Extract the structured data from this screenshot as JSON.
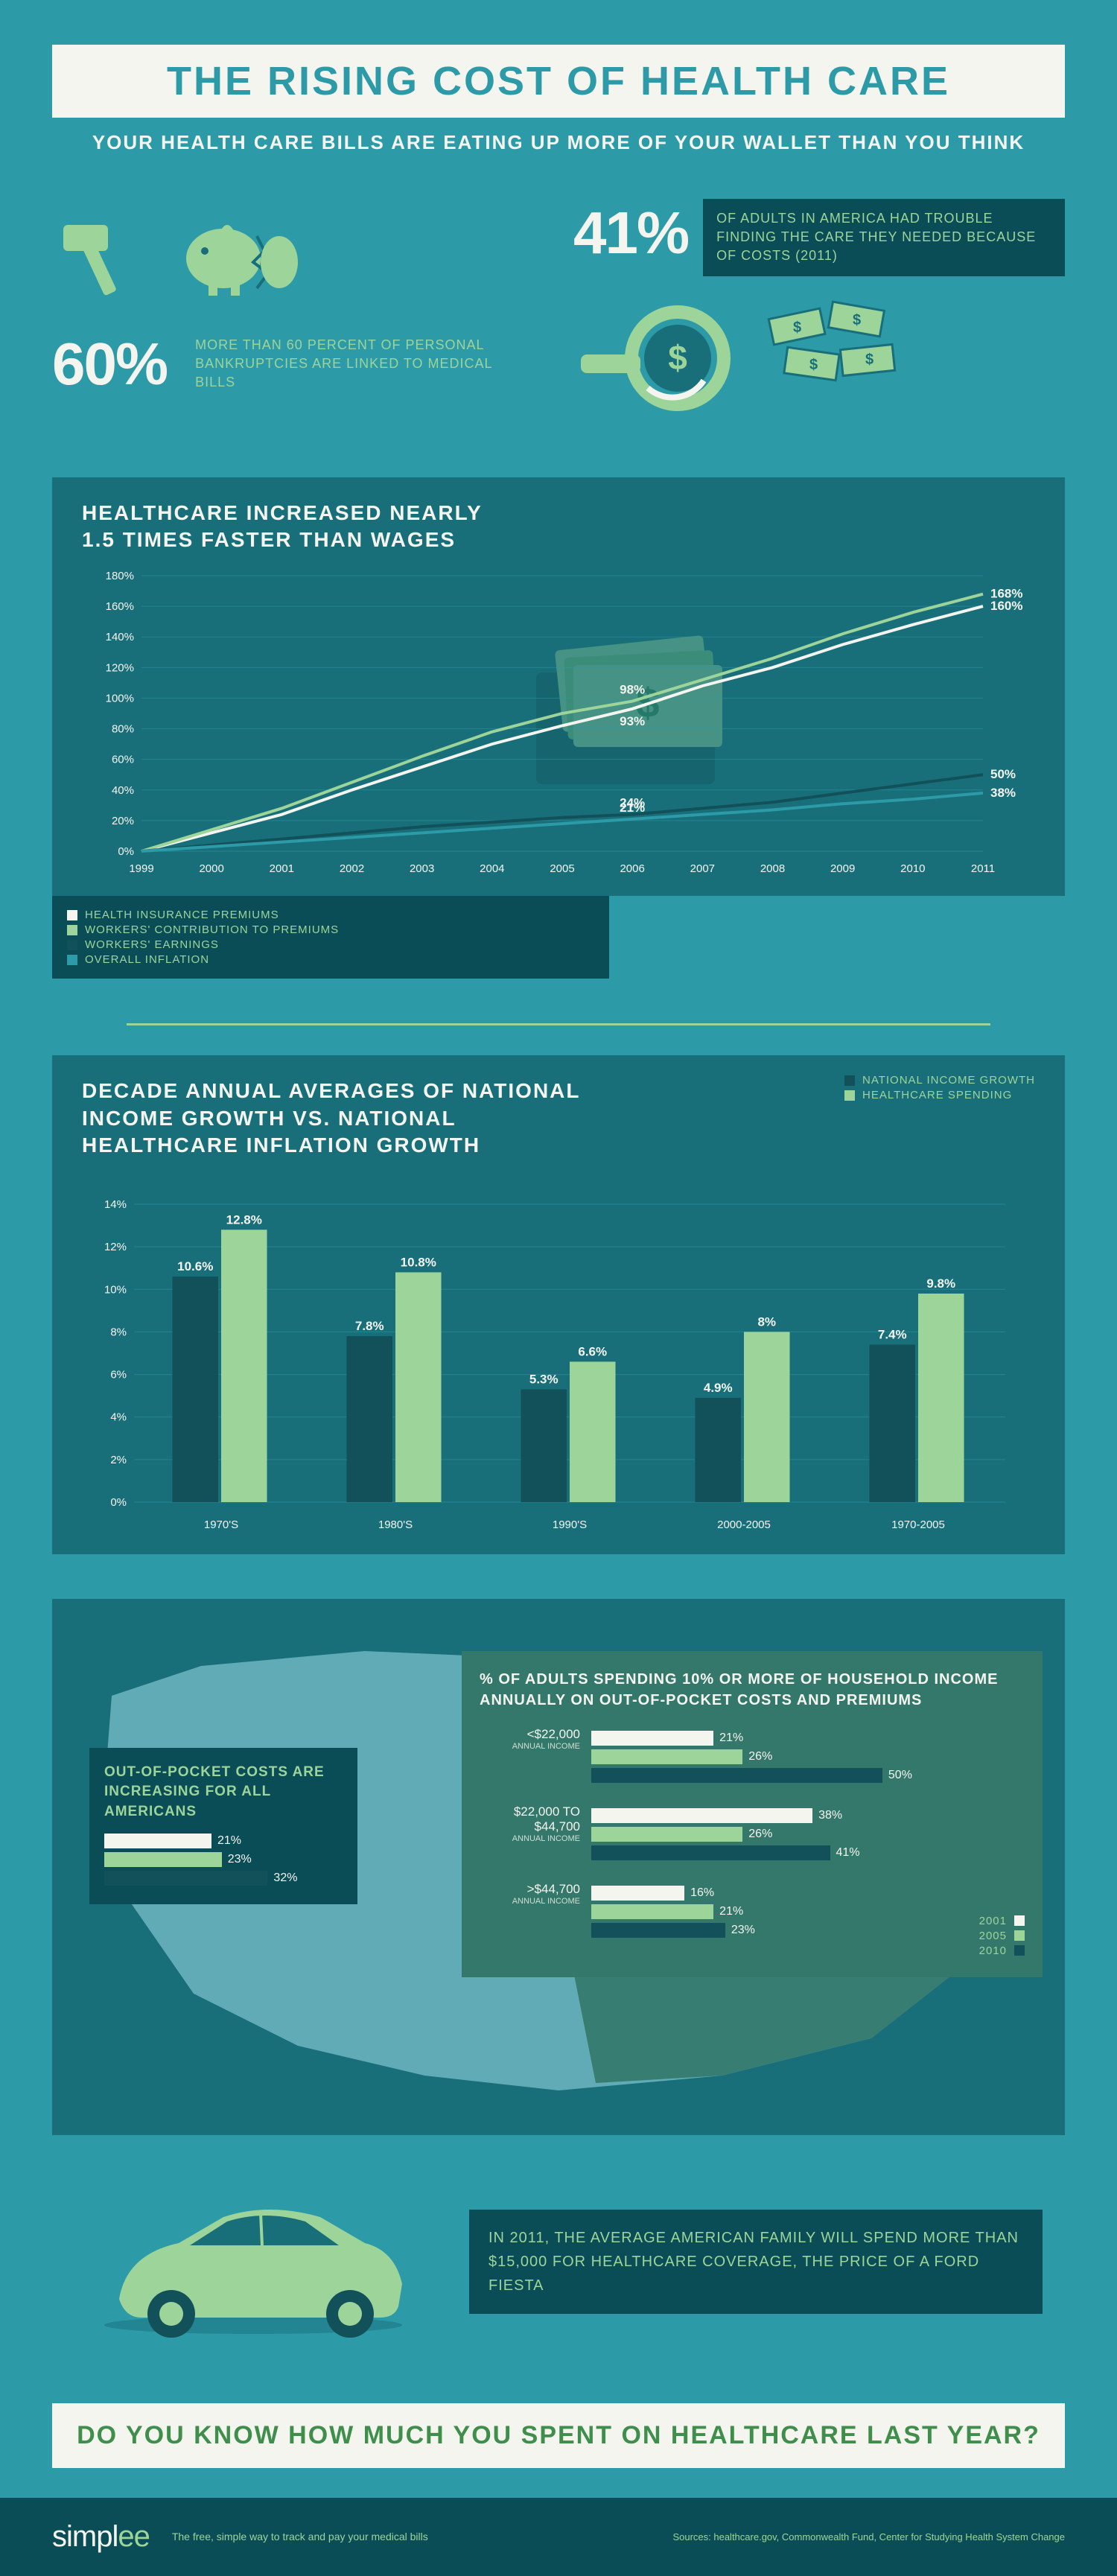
{
  "colors": {
    "bg": "#2d9aa8",
    "panel": "#186f7a",
    "dark": "#0a4d56",
    "text_light": "#f5f5f0",
    "accent_green": "#9dd49a",
    "accent_dark_green": "#3f8e4c",
    "dark_teal": "#12515a",
    "map_light": "#6db6c1",
    "income_panel": "#33786a"
  },
  "header": {
    "title": "THE RISING COST OF HEALTH CARE",
    "subtitle": "YOUR HEALTH CARE BILLS ARE EATING UP MORE OF YOUR WALLET THAN YOU THINK"
  },
  "stat60": {
    "value": "60%",
    "desc": "MORE THAN 60 PERCENT OF PERSONAL BANKRUPTCIES ARE LINKED TO MEDICAL BILLS"
  },
  "stat41": {
    "value": "41%",
    "desc": "OF ADULTS IN AMERICA HAD TROUBLE FINDING THE CARE THEY NEEDED BECAUSE OF COSTS (2011)"
  },
  "line_chart": {
    "title1": "HEALTHCARE INCREASED NEARLY",
    "title2": "1.5 TIMES FASTER THAN WAGES",
    "years": [
      "1999",
      "2000",
      "2001",
      "2002",
      "2003",
      "2004",
      "2005",
      "2006",
      "2007",
      "2008",
      "2009",
      "2010",
      "2011"
    ],
    "ylim": [
      0,
      180
    ],
    "ytick_step": 20,
    "series": [
      {
        "name": "HEALTH INSURANCE PREMIUMS",
        "color": "#f5f5f0",
        "values": [
          0,
          12,
          24,
          40,
          55,
          70,
          82,
          93,
          108,
          120,
          135,
          148,
          160
        ],
        "end_label": "160%"
      },
      {
        "name": "WORKERS' CONTRIBUTION TO PREMIUMS",
        "color": "#9dd49a",
        "values": [
          0,
          14,
          28,
          45,
          62,
          78,
          90,
          98,
          112,
          126,
          142,
          156,
          168
        ],
        "end_label": "168%",
        "mid_label": "98%",
        "mid_idx": 7
      },
      {
        "name": "WORKERS' EARNINGS",
        "color": "#12515a",
        "values": [
          0,
          4,
          8,
          12,
          16,
          19,
          22,
          24,
          28,
          32,
          38,
          44,
          50
        ],
        "end_label": "50%",
        "mid_label": "24%",
        "mid_idx": 7
      },
      {
        "name": "OVERALL INFLATION",
        "color": "#2d9aa8",
        "values": [
          0,
          3,
          6,
          9,
          12,
          15,
          18,
          21,
          24,
          27,
          31,
          34,
          38
        ],
        "end_label": "38%",
        "mid_label": "21%",
        "mid_idx": 7
      }
    ],
    "premiums_mid": {
      "label": "93%",
      "idx": 7
    }
  },
  "bar_chart": {
    "title": "DECADE ANNUAL AVERAGES OF NATIONAL INCOME GROWTH VS. NATIONAL HEALTHCARE INFLATION GROWTH",
    "ylim": [
      0,
      14
    ],
    "ytick_step": 2,
    "categories": [
      "1970'S",
      "1980'S",
      "1990'S",
      "2000-2005",
      "1970-2005"
    ],
    "series": [
      {
        "name": "NATIONAL INCOME GROWTH",
        "color": "#12515a",
        "values": [
          10.6,
          7.8,
          5.3,
          4.9,
          7.4
        ]
      },
      {
        "name": "HEALTHCARE SPENDING",
        "color": "#9dd49a",
        "values": [
          12.8,
          10.8,
          6.6,
          8.0,
          9.8
        ]
      }
    ]
  },
  "map_section": {
    "pocket_title": "OUT-OF-POCKET COSTS ARE INCREASING FOR ALL AMERICANS",
    "pocket_bars": [
      {
        "color": "#f5f5f0",
        "value": 21
      },
      {
        "color": "#9dd49a",
        "value": 23
      },
      {
        "color": "#12515a",
        "value": 32
      }
    ],
    "income_title": "% OF ADULTS SPENDING 10% OR MORE OF HOUSEHOLD INCOME ANNUALLY ON OUT-OF-POCKET COSTS AND PREMIUMS",
    "income_groups": [
      {
        "label": "<$22,000",
        "sub": "ANNUAL INCOME",
        "bars": [
          {
            "color": "#f5f5f0",
            "value": 21
          },
          {
            "color": "#9dd49a",
            "value": 26
          },
          {
            "color": "#12515a",
            "value": 50
          }
        ]
      },
      {
        "label": "$22,000 TO $44,700",
        "sub": "ANNUAL INCOME",
        "bars": [
          {
            "color": "#f5f5f0",
            "value": 38
          },
          {
            "color": "#9dd49a",
            "value": 26
          },
          {
            "color": "#12515a",
            "value": 41
          }
        ]
      },
      {
        "label": ">$44,700",
        "sub": "ANNUAL INCOME",
        "bars": [
          {
            "color": "#f5f5f0",
            "value": 16
          },
          {
            "color": "#9dd49a",
            "value": 21
          },
          {
            "color": "#12515a",
            "value": 23
          }
        ]
      }
    ],
    "year_legend": [
      {
        "year": "2001",
        "color": "#f5f5f0"
      },
      {
        "year": "2005",
        "color": "#9dd49a"
      },
      {
        "year": "2010",
        "color": "#12515a"
      }
    ]
  },
  "car_fact": "IN 2011, THE AVERAGE AMERICAN FAMILY WILL SPEND MORE THAN $15,000 FOR HEALTHCARE COVERAGE, THE PRICE OF A FORD FIESTA",
  "cta": "DO YOU KNOW HOW MUCH YOU SPENT ON HEALTHCARE LAST YEAR?",
  "footer": {
    "brand": "simpl",
    "brand_accent": "ee",
    "tagline": "The free, simple way to track and pay your medical bills",
    "sources": "Sources: healthcare.gov, Commonwealth Fund, Center for Studying Health System Change"
  }
}
